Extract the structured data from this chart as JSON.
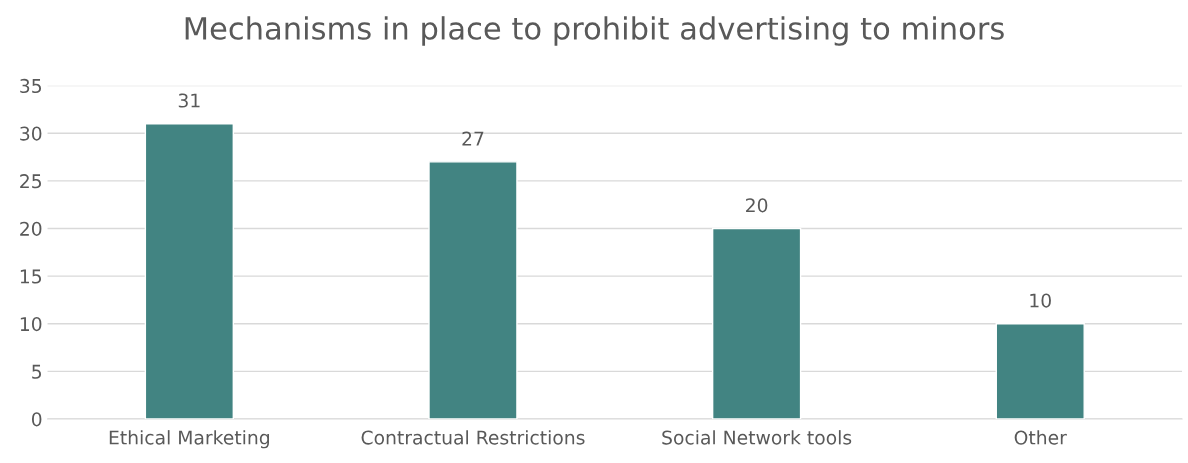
{
  "chart_data": {
    "type": "bar",
    "title": "Mechanisms in place to prohibit advertising to minors",
    "categories": [
      "Ethical Marketing",
      "Contractual Restrictions",
      "Social Network tools",
      "Other"
    ],
    "values": [
      31,
      27,
      20,
      10
    ],
    "color": "#428482",
    "ylim": [
      0,
      35
    ],
    "yticks": [
      0,
      5,
      10,
      15,
      20,
      25,
      30,
      35
    ],
    "grid": "y",
    "data_labels": true
  }
}
